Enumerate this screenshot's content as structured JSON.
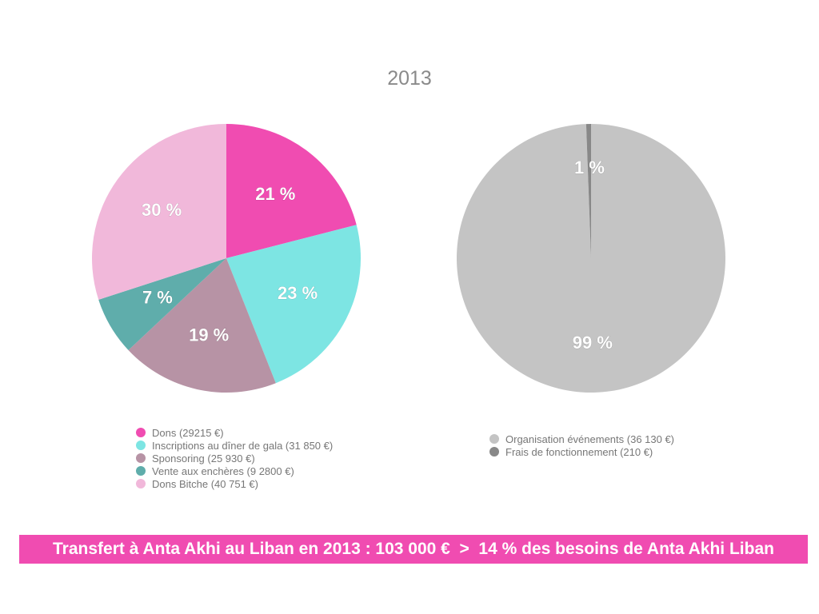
{
  "year": "2013",
  "chart_data": [
    {
      "type": "pie",
      "title": "",
      "slices": [
        {
          "label": "Dons (29215 €)",
          "value": 21,
          "display": "21 %",
          "color": "#f04cb1"
        },
        {
          "label": "Inscriptions au dîner de gala (31 850 €)",
          "value": 23,
          "display": "23 %",
          "color": "#7de5e3"
        },
        {
          "label": "Sponsoring (25 930 €)",
          "value": 19,
          "display": "19 %",
          "color": "#b793a5"
        },
        {
          "label": "Vente aux enchères (9 2800 €)",
          "value": 7,
          "display": "7 %",
          "color": "#5fadab"
        },
        {
          "label": "Dons Bitche (40 751 €)",
          "value": 30,
          "display": "30 %",
          "color": "#f1b8da"
        }
      ]
    },
    {
      "type": "pie",
      "title": "",
      "slices": [
        {
          "label": "Organisation événements (36 130 €)",
          "value": 99.42,
          "display": "99 %",
          "color": "#c4c4c4"
        },
        {
          "label": "Frais de fonctionnement (210 €)",
          "value": 0.58,
          "display": "1 %",
          "color": "#888888"
        }
      ]
    }
  ],
  "banner": "Transfert à Anta Akhi au Liban en 2013 : 103 000 €  >  14 % des besoins de Anta Akhi Liban"
}
